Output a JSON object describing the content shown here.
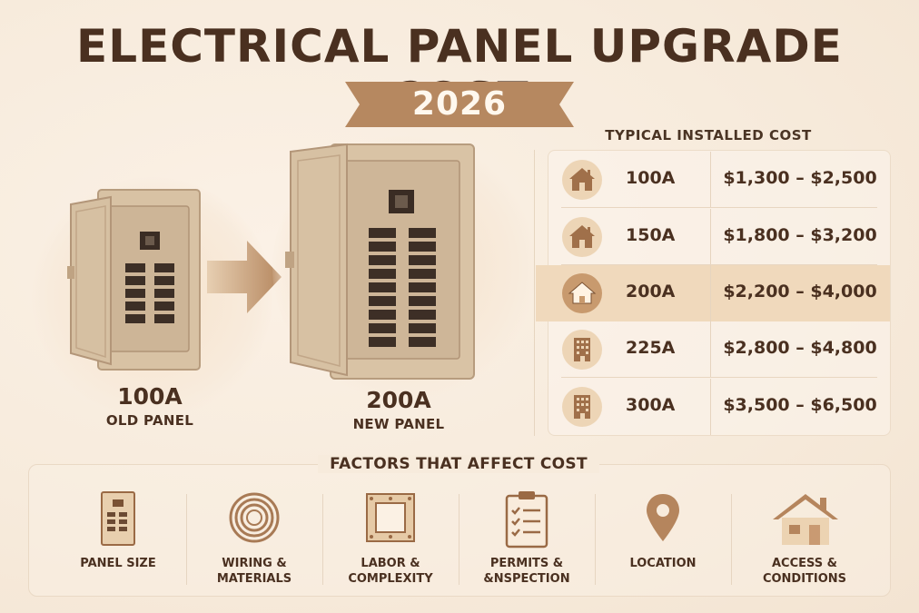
{
  "title": "ELECTRICAL PANEL UPGRADE COST",
  "year": "2026",
  "old_panel": {
    "amp": "100A",
    "label": "OLD PANEL"
  },
  "new_panel": {
    "amp": "200A",
    "label": "NEW PANEL"
  },
  "cost_table": {
    "heading": "TYPICAL INSTALLED COST",
    "rows": [
      {
        "amp": "100A",
        "price": "$1,300 – $2,500",
        "icon": "house-icon"
      },
      {
        "amp": "150A",
        "price": "$1,800 – $3,200",
        "icon": "house-icon"
      },
      {
        "amp": "200A",
        "price": "$2,200 – $4,000",
        "icon": "house-icon",
        "highlighted": true
      },
      {
        "amp": "225A",
        "price": "$2,800 – $4,800",
        "icon": "building-icon"
      },
      {
        "amp": "300A",
        "price": "$3,500 – $6,500",
        "icon": "building-icon"
      }
    ]
  },
  "factors": {
    "heading": "FACTORS THAT AFFECT COST",
    "items": [
      {
        "label": "PANEL SIZE",
        "icon": "panel-icon"
      },
      {
        "label": "WIRING &\nMATERIALS",
        "icon": "wire-coil-icon"
      },
      {
        "label": "LABOR &\nCOMPLEXITY",
        "icon": "frame-icon"
      },
      {
        "label": "PERMITS &\n&NSPECTION",
        "icon": "clipboard-icon"
      },
      {
        "label": "LOCATION",
        "icon": "location-pin-icon"
      },
      {
        "label": "ACCESS &\nCONDITIONS",
        "icon": "house-icon"
      }
    ]
  },
  "colors": {
    "background": "#f7ebdc",
    "accent": "#b98a62",
    "text": "#4a3020",
    "highlight": "#f0d9bc"
  }
}
